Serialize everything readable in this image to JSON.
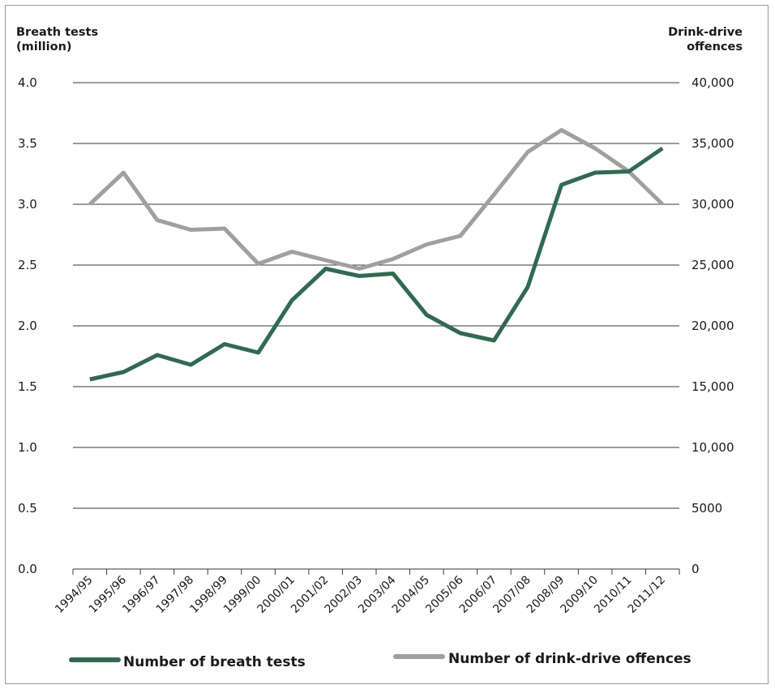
{
  "chart_data": {
    "type": "line",
    "title": "",
    "categories": [
      "1994/95",
      "1995/96",
      "1996/97",
      "1997/98",
      "1998/99",
      "1999/00",
      "2000/01",
      "2001/02",
      "2002/03",
      "2003/04",
      "2004/05",
      "2005/06",
      "2006/07",
      "2007/08",
      "2008/09",
      "2009/10",
      "2010/11",
      "2011/12"
    ],
    "left_axis": {
      "label_line1": "Breath tests",
      "label_line2": "(million)",
      "ylim": [
        0,
        4
      ],
      "ticks": [
        "0.0",
        "0.5",
        "1.0",
        "1.5",
        "2.0",
        "2.5",
        "3.0",
        "3.5",
        "4.0"
      ],
      "tick_values": [
        0,
        0.5,
        1.0,
        1.5,
        2.0,
        2.5,
        3.0,
        3.5,
        4.0
      ]
    },
    "right_axis": {
      "label_line1": "Drink-drive",
      "label_line2": "offences",
      "ylim": [
        0,
        40000
      ],
      "ticks": [
        "0",
        "5000",
        "10,000",
        "15,000",
        "20,000",
        "25,000",
        "30,000",
        "35,000",
        "40,000"
      ],
      "tick_values": [
        0,
        5000,
        10000,
        15000,
        20000,
        25000,
        30000,
        35000,
        40000
      ]
    },
    "series": [
      {
        "name": "Number of breath tests",
        "axis": "left",
        "color": "#2f6b52",
        "values": [
          1.56,
          1.62,
          1.76,
          1.68,
          1.85,
          1.78,
          2.21,
          2.47,
          2.41,
          2.43,
          2.09,
          1.94,
          1.88,
          2.32,
          3.16,
          3.26,
          3.27,
          3.46
        ]
      },
      {
        "name": "Number of drink-drive offences",
        "axis": "right",
        "color": "#a0a0a2",
        "values": [
          30000,
          32600,
          28700,
          27900,
          28000,
          25100,
          26100,
          25400,
          24700,
          25500,
          26700,
          27400,
          30800,
          34300,
          36100,
          34600,
          32700,
          30000
        ]
      }
    ],
    "grid": true,
    "legend_position": "bottom"
  }
}
